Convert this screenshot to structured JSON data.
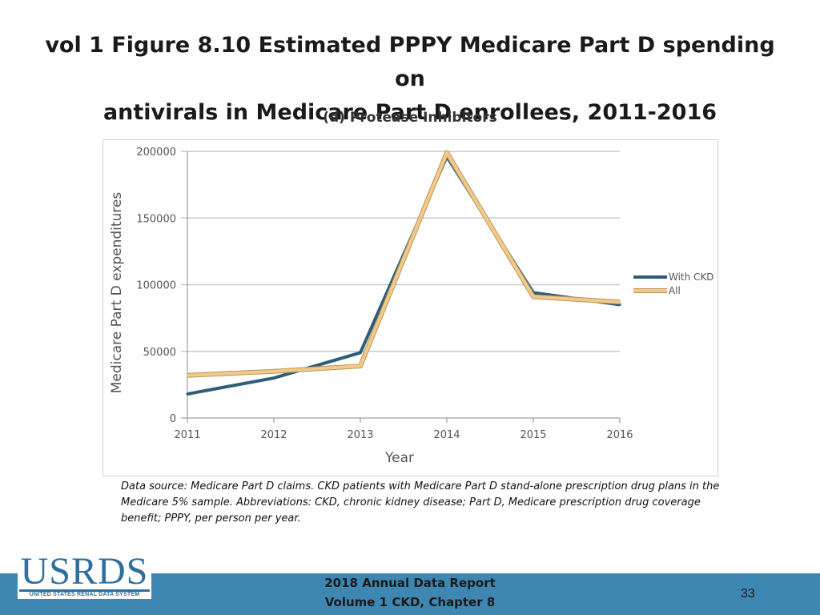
{
  "title_line1": "vol 1 Figure 8.10 Estimated PPPY Medicare Part D spending on",
  "title_line2": "antivirals in Medicare Part D enrollees, 2011-2016",
  "chart_data": {
    "type": "line",
    "title": "(d) Protease Inhibitors",
    "xlabel": "Year",
    "ylabel": "Medicare Part D expenditures",
    "x": [
      "2011",
      "2012",
      "2013",
      "2014",
      "2015",
      "2016"
    ],
    "ylim": [
      0,
      200000
    ],
    "yticks": [
      "0",
      "50000",
      "100000",
      "150000",
      "200000"
    ],
    "grid": true,
    "legend_position": "right",
    "series": [
      {
        "name": "With CKD",
        "color": "#2e5d78",
        "values": [
          18000,
          30000,
          49000,
          196000,
          94000,
          85000
        ]
      },
      {
        "name": "All",
        "color": "#f3c98a",
        "values": [
          32000,
          35000,
          39000,
          199000,
          91000,
          87000
        ]
      }
    ]
  },
  "note": "Data source: Medicare Part D claims. CKD patients with Medicare Part D stand-alone prescription drug plans in the Medicare 5% sample. Abbreviations: CKD, chronic kidney disease; Part D, Medicare prescription drug coverage benefit; PPPY, per person per year.",
  "logo": {
    "text": "USRDS",
    "subtext": "UNITED STATES RENAL DATA SYSTEM"
  },
  "footer": {
    "line1": "2018 Annual Data Report",
    "line2": "Volume 1 CKD, Chapter 8",
    "page": "33"
  }
}
